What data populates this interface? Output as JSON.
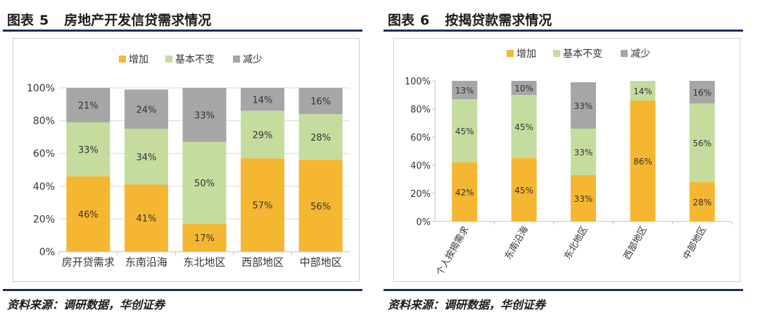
{
  "left": {
    "figure_label": "图表",
    "figure_number": "5",
    "title": "房地产开发信贷需求情况",
    "source": "资料来源：调研数据，华创证券"
  },
  "right": {
    "figure_label": "图表",
    "figure_number": "6",
    "title": "按揭贷款需求情况",
    "source": "资料来源：调研数据，华创证券"
  },
  "colors": {
    "increase": "#f5b731",
    "unchanged": "#c5dc9f",
    "decrease": "#a6a6a6",
    "rule": "#1f2d55"
  },
  "chart_data": [
    {
      "type": "bar",
      "stacked": true,
      "categories": [
        "房开贷需求",
        "东南沿海",
        "东北地区",
        "西部地区",
        "中部地区"
      ],
      "series": [
        {
          "name": "增加",
          "values": [
            46,
            41,
            17,
            57,
            56
          ],
          "labels": [
            "46%",
            "41%",
            "17%",
            "57%",
            "56%"
          ]
        },
        {
          "name": "基本不变",
          "values": [
            33,
            34,
            50,
            29,
            28
          ],
          "labels": [
            "33%",
            "34%",
            "50%",
            "29%",
            "28%"
          ]
        },
        {
          "name": "减少",
          "values": [
            21,
            24,
            33,
            14,
            16
          ],
          "labels": [
            "21%",
            "24%",
            "33%",
            "14%",
            "16%"
          ]
        }
      ],
      "ylim": [
        0,
        100
      ],
      "yticks": [
        "0%",
        "20%",
        "40%",
        "60%",
        "80%",
        "100%"
      ],
      "grid": true,
      "legend": "top-center",
      "xlabel_rotation": 0
    },
    {
      "type": "bar",
      "stacked": true,
      "categories": [
        "个人按揭需求",
        "东南沿海",
        "东北地区",
        "西部地区",
        "中部地区"
      ],
      "series": [
        {
          "name": "增加",
          "values": [
            42,
            45,
            33,
            86,
            28
          ],
          "labels": [
            "42%",
            "45%",
            "33%",
            "86%",
            "28%"
          ]
        },
        {
          "name": "基本不变",
          "values": [
            45,
            45,
            33,
            14,
            56
          ],
          "labels": [
            "45%",
            "45%",
            "33%",
            "14%",
            "56%"
          ]
        },
        {
          "name": "减少",
          "values": [
            13,
            10,
            33,
            0,
            16
          ],
          "labels": [
            "13%",
            "10%",
            "33%",
            "",
            "16%"
          ]
        }
      ],
      "ylim": [
        0,
        100
      ],
      "yticks": [
        "0%",
        "20%",
        "40%",
        "60%",
        "80%",
        "100%"
      ],
      "grid": false,
      "legend": "top-center",
      "xlabel_rotation": -60
    }
  ]
}
